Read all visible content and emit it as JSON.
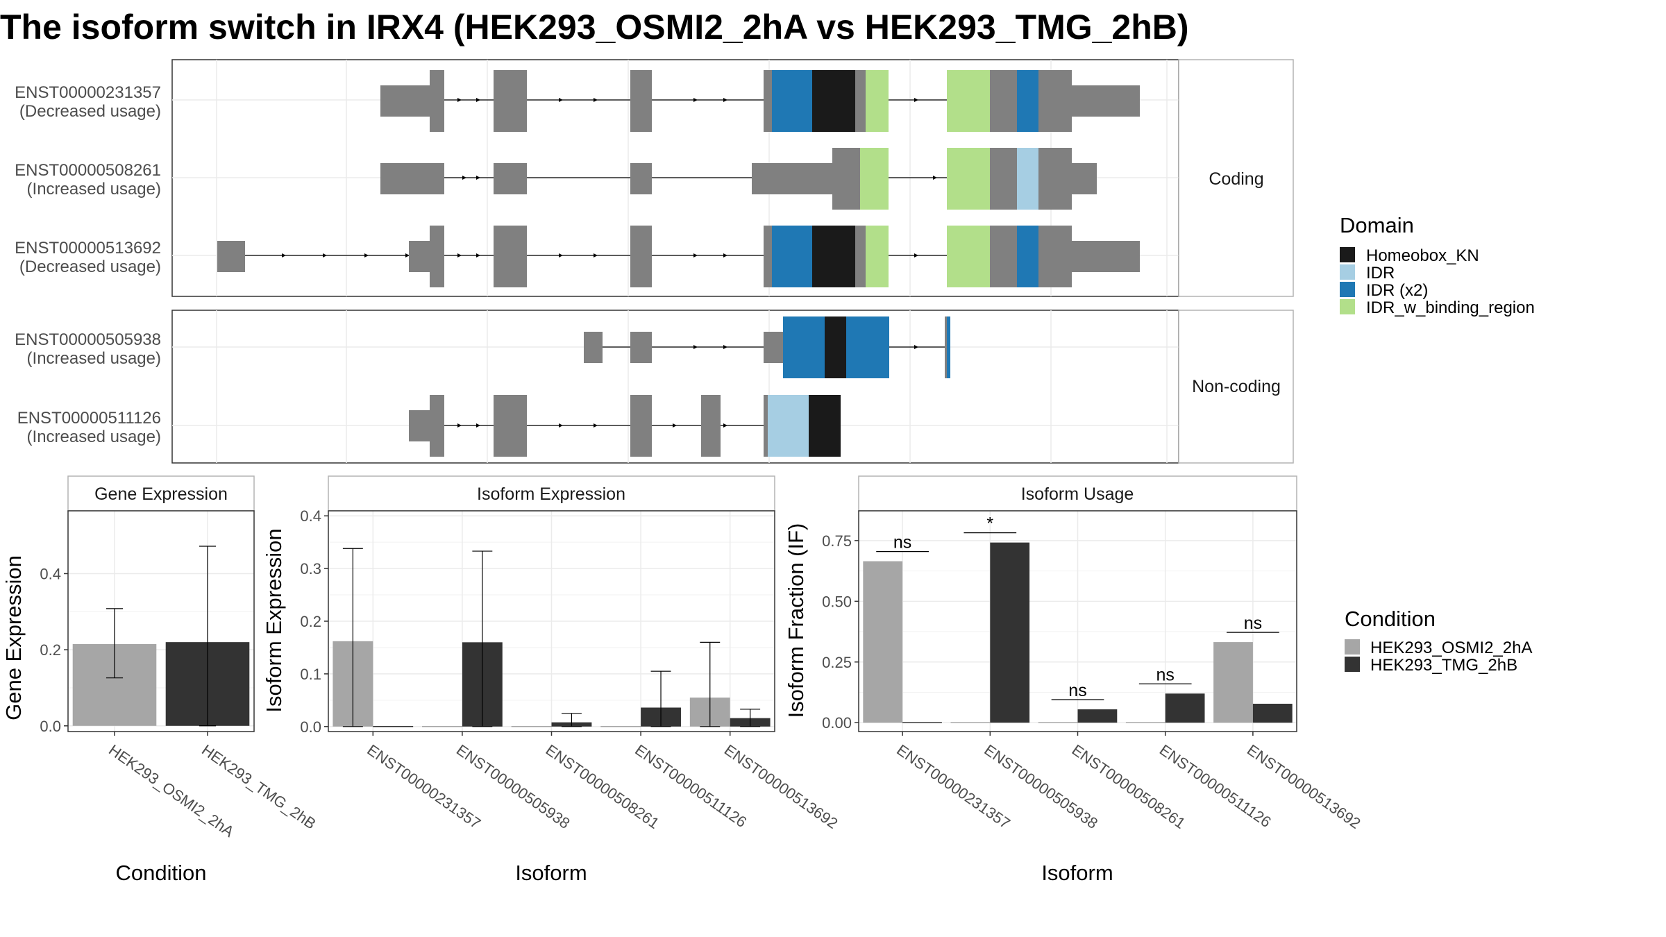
{
  "title": "The isoform switch in IRX4 (HEK293_OSMI2_2hA vs HEK293_TMG_2hB)",
  "colors": {
    "grey": "#808080",
    "panel_border": "#333333",
    "strip_border": "#b3b3b3",
    "grid": "#ebebeb",
    "cond_a": "#a6a6a6",
    "cond_b": "#333333",
    "homeobox": "#1a1a1a",
    "idr": "#a6cee3",
    "idr_x2": "#1f78b4",
    "idr_binding": "#b2df8a"
  },
  "structure": {
    "facets": [
      {
        "label": "Coding",
        "rows": [
          {
            "id": "ENST00000231357",
            "note": "(Decreased usage)"
          },
          {
            "id": "ENST00000508261",
            "note": "(Increased usage)"
          },
          {
            "id": "ENST00000513692",
            "note": "(Decreased usage)"
          }
        ]
      },
      {
        "label": "Non-coding",
        "rows": [
          {
            "id": "ENST00000505938",
            "note": "(Increased usage)"
          },
          {
            "id": "ENST00000511126",
            "note": "(Increased usage)"
          }
        ]
      }
    ],
    "legend_title": "Domain",
    "legend_items": [
      {
        "label": "Homeobox_KN",
        "color": "#1a1a1a"
      },
      {
        "label": "IDR",
        "color": "#a6cee3"
      },
      {
        "label": "IDR (x2)",
        "color": "#1f78b4"
      },
      {
        "label": "IDR_w_binding_region",
        "color": "#b2df8a"
      }
    ]
  },
  "condition_legend": {
    "title": "Condition",
    "items": [
      {
        "label": "HEK293_OSMI2_2hA",
        "color": "#a6a6a6"
      },
      {
        "label": "HEK293_TMG_2hB",
        "color": "#333333"
      }
    ]
  },
  "chart_data": [
    {
      "type": "bar",
      "title": "Gene Expression",
      "xlabel": "Condition",
      "ylabel": "Gene Expression",
      "ylim": [
        -0.015,
        0.565
      ],
      "yticks": [
        0.0,
        0.2,
        0.4
      ],
      "ytick_labels": [
        "0.0",
        "0.2",
        "0.4"
      ],
      "categories": [
        "HEK293_OSMI2_2hA",
        "HEK293_TMG_2hB"
      ],
      "values": [
        0.215,
        0.22
      ],
      "err_low": [
        0.126,
        0.0
      ],
      "err_high": [
        0.308,
        0.472
      ]
    },
    {
      "type": "bar",
      "title": "Isoform Expression",
      "xlabel": "Isoform",
      "ylabel": "Isoform Expression",
      "ylim": [
        -0.0095,
        0.4095
      ],
      "yticks": [
        0.0,
        0.1,
        0.2,
        0.3,
        0.4
      ],
      "ytick_labels": [
        "0.0",
        "0.1",
        "0.2",
        "0.3",
        "0.4"
      ],
      "categories": [
        "ENST00000231357",
        "ENST00000505938",
        "ENST00000508261",
        "ENST00000511126",
        "ENST00000513692"
      ],
      "series": [
        {
          "name": "HEK293_OSMI2_2hA",
          "values": [
            0.162,
            0.0,
            0.0,
            0.0,
            0.055
          ],
          "err_low": [
            0.0,
            0.0,
            0.0,
            0.0,
            0.0
          ],
          "err_high": [
            0.338,
            0.0,
            0.0,
            0.0,
            0.16
          ]
        },
        {
          "name": "HEK293_TMG_2hB",
          "values": [
            0.0,
            0.16,
            0.008,
            0.036,
            0.016
          ],
          "err_low": [
            0.0,
            0.0,
            0.0,
            0.0,
            0.0
          ],
          "err_high": [
            0.0,
            0.333,
            0.025,
            0.105,
            0.033
          ]
        }
      ]
    },
    {
      "type": "bar",
      "title": "Isoform Usage",
      "xlabel": "Isoform",
      "ylabel": "Isoform Fraction (IF)",
      "ylim": [
        -0.0365,
        0.8725
      ],
      "yticks": [
        0.0,
        0.25,
        0.5,
        0.75
      ],
      "ytick_labels": [
        "0.00",
        "0.25",
        "0.50",
        "0.75"
      ],
      "categories": [
        "ENST00000231357",
        "ENST00000505938",
        "ENST00000508261",
        "ENST00000511126",
        "ENST00000513692"
      ],
      "series": [
        {
          "name": "HEK293_OSMI2_2hA",
          "values": [
            0.665,
            0.0,
            0.0,
            0.0,
            0.332
          ]
        },
        {
          "name": "HEK293_TMG_2hB",
          "values": [
            0.0,
            0.742,
            0.055,
            0.12,
            0.078
          ]
        }
      ],
      "significance": [
        {
          "category": "ENST00000231357",
          "label": "ns",
          "y": 0.705
        },
        {
          "category": "ENST00000505938",
          "label": "*",
          "y": 0.782
        },
        {
          "category": "ENST00000508261",
          "label": "ns",
          "y": 0.095
        },
        {
          "category": "ENST00000511126",
          "label": "ns",
          "y": 0.16
        },
        {
          "category": "ENST00000513692",
          "label": "ns",
          "y": 0.372
        }
      ]
    }
  ]
}
